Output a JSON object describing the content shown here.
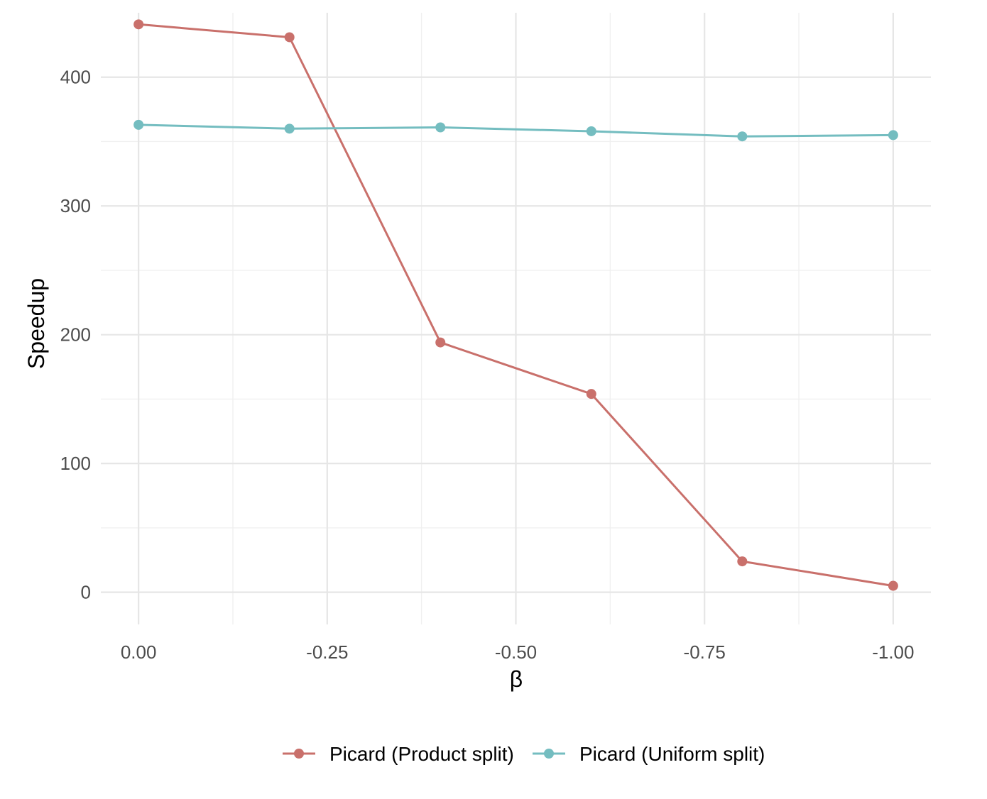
{
  "chart_data": {
    "type": "line",
    "xlabel": "β",
    "ylabel": "Speedup",
    "x": [
      0.0,
      -0.2,
      -0.4,
      -0.6,
      -0.8,
      -1.0
    ],
    "xlim": [
      0.05,
      -1.05
    ],
    "ylim": [
      -25,
      450
    ],
    "x_ticks": [
      0.0,
      -0.25,
      -0.5,
      -0.75,
      -1.0
    ],
    "x_tick_labels": [
      "0.00",
      "-0.25",
      "-0.50",
      "-0.75",
      "-1.00"
    ],
    "y_ticks": [
      0,
      100,
      200,
      300,
      400
    ],
    "y_tick_labels": [
      "0",
      "100",
      "200",
      "300",
      "400"
    ],
    "grid": true,
    "legend_position": "bottom",
    "series": [
      {
        "name": "Picard (Product split)",
        "color": "#c9706b",
        "values": [
          441,
          431,
          194,
          154,
          24,
          5
        ]
      },
      {
        "name": "Picard (Uniform split)",
        "color": "#74bdc0",
        "values": [
          363,
          360,
          361,
          358,
          354,
          355
        ]
      }
    ]
  }
}
